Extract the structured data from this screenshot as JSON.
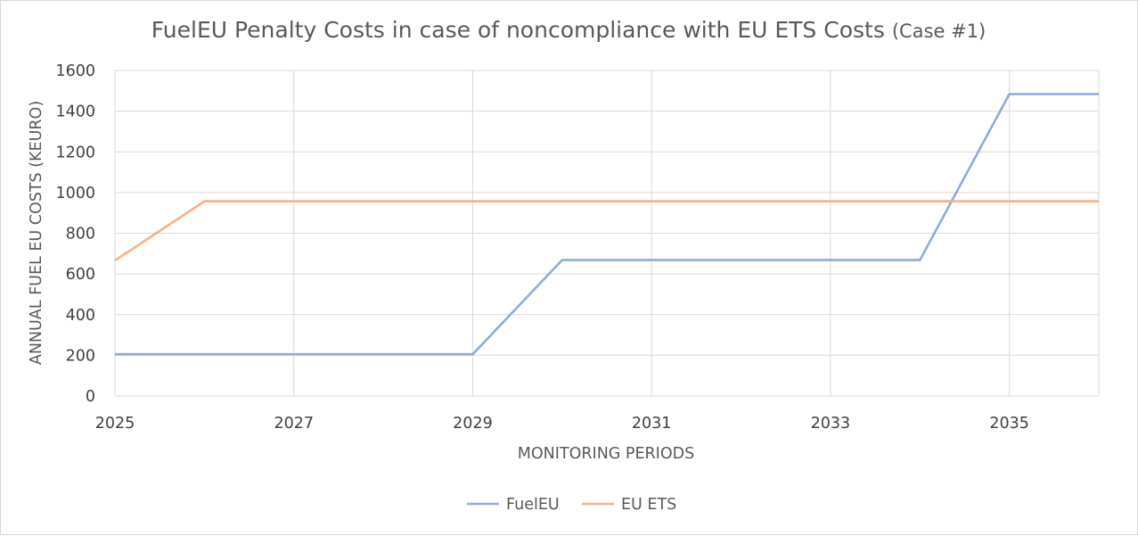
{
  "chart_data": {
    "type": "line",
    "title": "FuelEU Penalty Costs in case of noncompliance with EU ETS Costs",
    "title_suffix": "(Case #1)",
    "xlabel": "MONITORING PERIODS",
    "ylabel": "ANNUAL FUEL EU COSTS (KEURO)",
    "x": [
      2025,
      2026,
      2027,
      2028,
      2029,
      2030,
      2031,
      2032,
      2033,
      2034,
      2035,
      2036
    ],
    "xlim": [
      2025,
      2036
    ],
    "ylim": [
      0,
      1600
    ],
    "x_ticks": [
      "2025",
      "2027",
      "2029",
      "2031",
      "2033",
      "2035"
    ],
    "y_ticks": [
      "0",
      "200",
      "400",
      "600",
      "800",
      "1000",
      "1200",
      "1400",
      "1600"
    ],
    "grid": true,
    "legend_position": "bottom",
    "series": [
      {
        "name": "FuelEU",
        "color": "#8faadc",
        "values": [
          205,
          205,
          205,
          205,
          205,
          668,
          668,
          668,
          668,
          668,
          1484,
          1484
        ]
      },
      {
        "name": "EU ETS",
        "color": "#f4b183",
        "values": [
          666,
          957,
          957,
          957,
          957,
          957,
          957,
          957,
          957,
          957,
          957,
          957
        ]
      }
    ]
  }
}
